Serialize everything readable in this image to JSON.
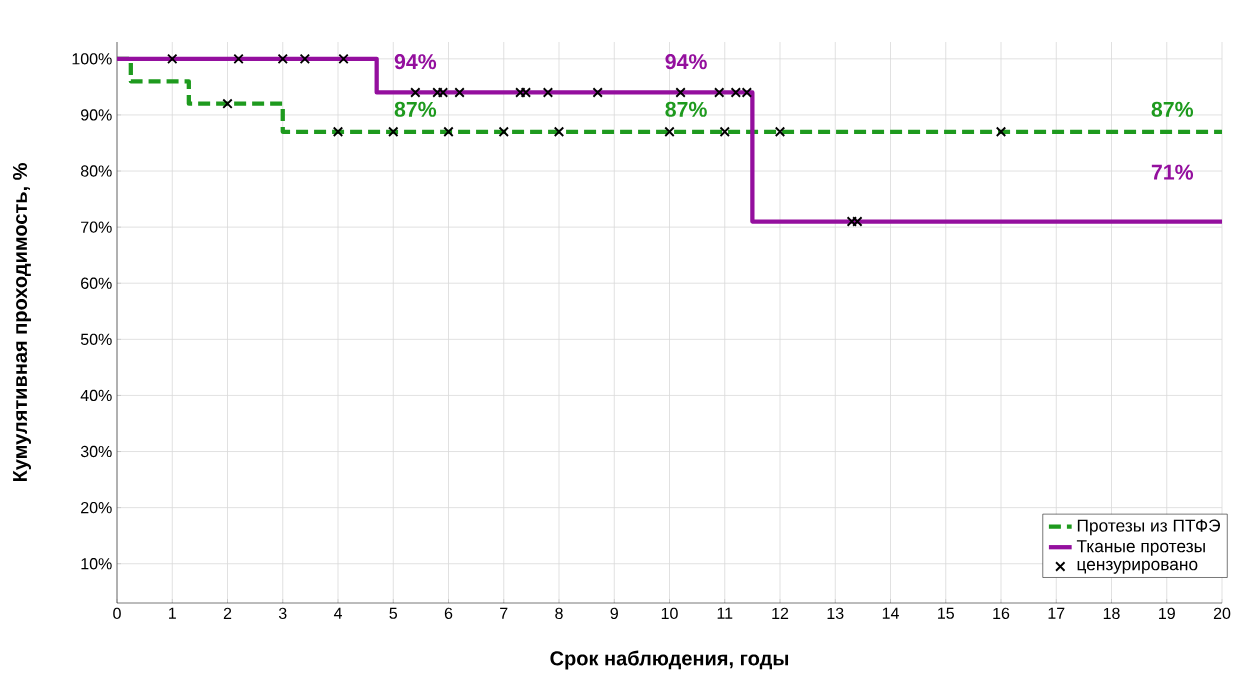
{
  "chart_data": {
    "type": "step",
    "xlabel": "Срок наблюдения, годы",
    "ylabel": "Кумулятивная проходимость, %",
    "xlim": [
      0,
      20
    ],
    "ylim": [
      3,
      103
    ],
    "xticks": [
      0,
      1,
      2,
      3,
      4,
      5,
      6,
      7,
      8,
      9,
      10,
      11,
      12,
      13,
      14,
      15,
      16,
      17,
      18,
      19,
      20
    ],
    "yticks": [
      {
        "value": 10,
        "label": "10%"
      },
      {
        "value": 20,
        "label": "20%"
      },
      {
        "value": 30,
        "label": "30%"
      },
      {
        "value": 40,
        "label": "40%"
      },
      {
        "value": 50,
        "label": "50%"
      },
      {
        "value": 60,
        "label": "60%"
      },
      {
        "value": 70,
        "label": "70%"
      },
      {
        "value": 80,
        "label": "80%"
      },
      {
        "value": 90,
        "label": "90%"
      },
      {
        "value": 100,
        "label": "100%"
      }
    ],
    "grid": true,
    "legend": "bottom right",
    "series": [
      {
        "name": "Протезы из ПТФЭ",
        "color": "#1e9a1e",
        "line_style": "dashed",
        "x": [
          0,
          0.25,
          1.3,
          3,
          20
        ],
        "values": [
          100,
          96,
          92,
          87,
          87
        ]
      },
      {
        "name": "Тканые протезы",
        "color": "#940f9e",
        "line_style": "solid",
        "x": [
          0,
          4.7,
          11.5,
          20
        ],
        "values": [
          100,
          94,
          71,
          71
        ]
      },
      {
        "name": "цензурировано",
        "type": "scatter",
        "color": "#000000",
        "marker": "cross",
        "x": [
          1,
          2.2,
          3,
          3.4,
          4.1,
          5.4,
          5.8,
          5.9,
          6.2,
          7.3,
          7.4,
          7.8,
          8.7,
          10.2,
          10.9,
          11.2,
          11.4,
          13.3,
          13.4,
          2,
          4,
          5,
          6,
          7,
          8,
          10,
          11,
          12,
          16
        ],
        "values": [
          100,
          100,
          100,
          100,
          100,
          94,
          94,
          94,
          94,
          94,
          94,
          94,
          94,
          94,
          94,
          94,
          94,
          71,
          71,
          92,
          87,
          87,
          87,
          87,
          87,
          87,
          87,
          87,
          87
        ]
      }
    ],
    "annotations": [
      "94%",
      "94%",
      "87%",
      "87%",
      "87%",
      "71%"
    ]
  }
}
